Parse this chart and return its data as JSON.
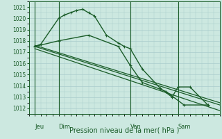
{
  "title": "Pression niveau de la mer( hPa )",
  "bg_color": "#cce8e0",
  "grid_color": "#aacccc",
  "line_color": "#1a5c28",
  "ylim": [
    1011.5,
    1021.5
  ],
  "yticks": [
    1012,
    1013,
    1014,
    1015,
    1016,
    1017,
    1018,
    1019,
    1020,
    1021
  ],
  "xlim": [
    0,
    16
  ],
  "day_labels": [
    "Jeu",
    "Dim",
    "Ven",
    "Sam"
  ],
  "day_positions": [
    0.5,
    2.5,
    8.5,
    12.5
  ],
  "vline_positions": [
    0.5,
    2.5,
    8.5,
    12.5
  ],
  "series": [
    {
      "x": [
        0.5,
        1.0,
        2.5,
        3.0,
        3.5,
        4.0,
        4.5,
        5.0,
        5.5,
        6.5,
        7.5,
        8.0,
        8.5,
        9.5,
        11.0,
        12.0,
        12.5,
        13.5,
        15.0
      ],
      "y": [
        1017.5,
        1017.7,
        1020.0,
        1020.3,
        1020.5,
        1020.7,
        1020.8,
        1020.5,
        1020.2,
        1018.5,
        1017.8,
        1017.5,
        1017.3,
        1015.5,
        1013.8,
        1013.0,
        1013.9,
        1013.9,
        1012.3
      ],
      "lw": 1.0,
      "ms": 3.5
    },
    {
      "x": [
        0.5,
        16.0
      ],
      "y": [
        1017.5,
        1012.3
      ],
      "lw": 0.9,
      "ms": 0
    },
    {
      "x": [
        0.5,
        16.0
      ],
      "y": [
        1017.3,
        1011.8
      ],
      "lw": 0.9,
      "ms": 0
    },
    {
      "x": [
        0.5,
        16.0
      ],
      "y": [
        1017.6,
        1012.5
      ],
      "lw": 0.9,
      "ms": 0
    },
    {
      "x": [
        0.5,
        2.5,
        5.0,
        7.5,
        8.5,
        9.5,
        11.5,
        13.0,
        15.0
      ],
      "y": [
        1017.5,
        1018.0,
        1018.5,
        1017.5,
        1015.8,
        1014.3,
        1013.5,
        1012.3,
        1012.3
      ],
      "lw": 1.0,
      "ms": 3.0
    }
  ]
}
